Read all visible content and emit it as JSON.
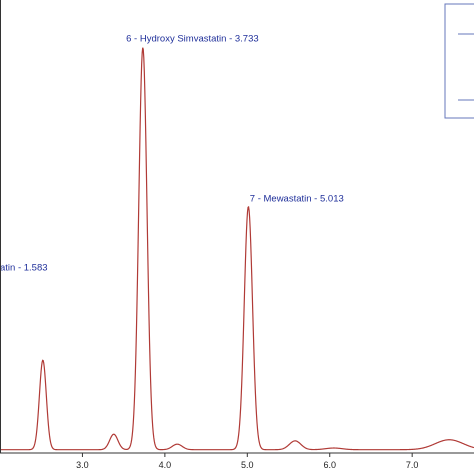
{
  "chart_data": {
    "type": "line",
    "title": "",
    "xlabel": "",
    "ylabel": "",
    "xlim": [
      2.0,
      7.75
    ],
    "ylim": [
      0,
      0.82
    ],
    "grid": false,
    "legend": "top-right",
    "colors": {
      "trace": "#b03a36",
      "annotation": "#1f2f9a",
      "axis": "#333333",
      "legend_border": "#6677bb"
    },
    "x_ticks": [
      {
        "value": 3.0,
        "label": "3.0"
      },
      {
        "value": 4.0,
        "label": "4.0"
      },
      {
        "value": 5.0,
        "label": "5.0"
      },
      {
        "value": 6.0,
        "label": "6.0"
      },
      {
        "value": 7.0,
        "label": "7.0"
      }
    ],
    "series": [
      {
        "baseline": 0.006,
        "peaks": [
          {
            "rt": 2.52,
            "height": 0.162,
            "width": 0.042
          },
          {
            "rt": 3.38,
            "height": 0.028,
            "width": 0.05
          },
          {
            "rt": 3.733,
            "height": 0.728,
            "width": 0.05
          },
          {
            "rt": 4.15,
            "height": 0.01,
            "width": 0.06
          },
          {
            "rt": 5.013,
            "height": 0.44,
            "width": 0.05
          },
          {
            "rt": 5.58,
            "height": 0.016,
            "width": 0.07
          },
          {
            "rt": 6.05,
            "height": 0.003,
            "width": 0.1
          },
          {
            "rt": 7.45,
            "height": 0.018,
            "width": 0.17
          }
        ]
      }
    ],
    "annotations": [
      {
        "text": "atin - 1.583",
        "x": 2.0,
        "y": 0.33
      },
      {
        "text": "6 - Hydroxy Simvastatin - 3.733",
        "x": 3.53,
        "y": 0.745
      },
      {
        "text": "7 - Mewastatin - 5.013",
        "x": 5.03,
        "y": 0.455
      }
    ]
  }
}
